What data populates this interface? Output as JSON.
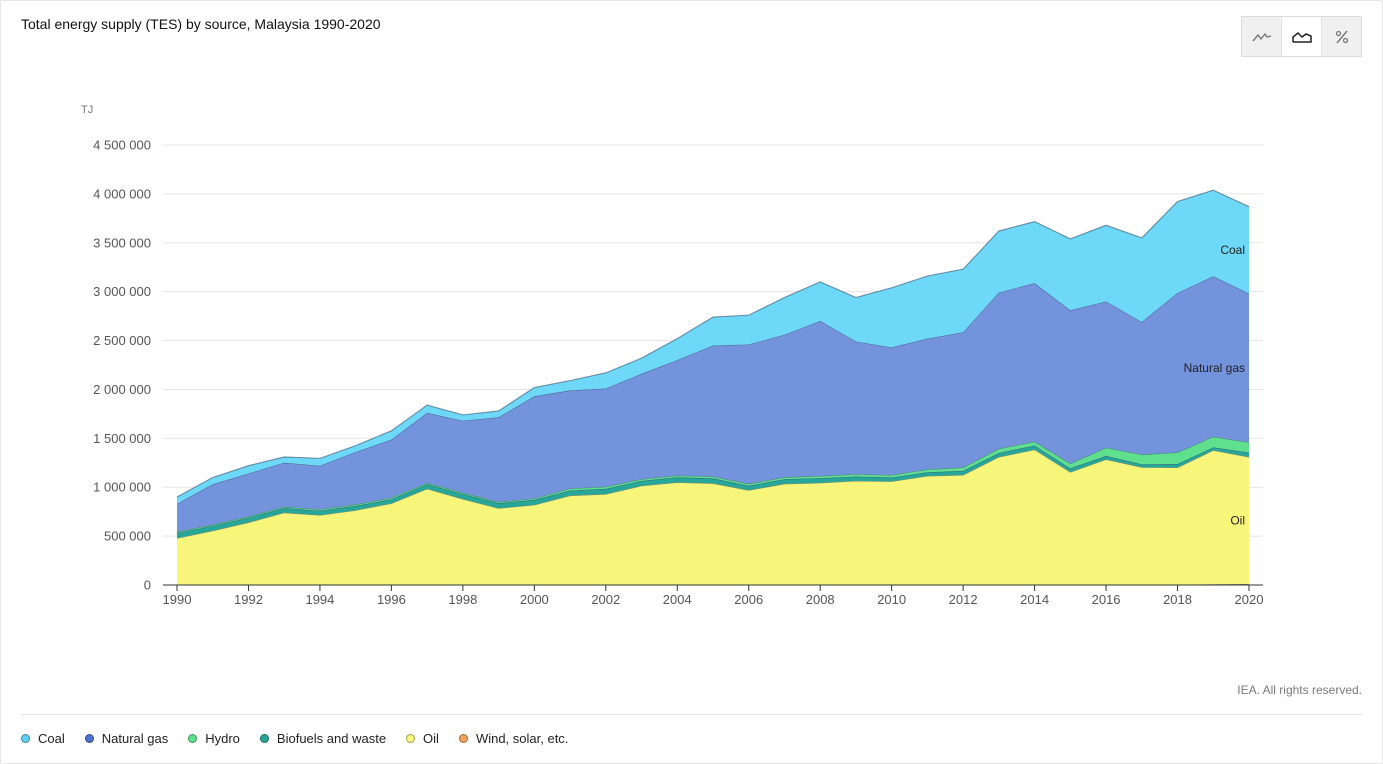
{
  "header": {
    "title": "Total energy supply (TES) by source, Malaysia 1990-2020"
  },
  "toolbar": {
    "buttons": [
      {
        "name": "line-chart-icon",
        "active": false
      },
      {
        "name": "area-chart-icon",
        "active": true
      },
      {
        "name": "percent-icon",
        "active": false,
        "label": "%"
      }
    ]
  },
  "footer": {
    "copyright": "IEA. All rights reserved."
  },
  "legend": [
    {
      "label": "Coal",
      "color": "#5fd0f5"
    },
    {
      "label": "Natural gas",
      "color": "#4a72d1"
    },
    {
      "label": "Hydro",
      "color": "#5ee08e"
    },
    {
      "label": "Biofuels and waste",
      "color": "#27a69a"
    },
    {
      "label": "Oil",
      "color": "#f7f57a"
    },
    {
      "label": "Wind, solar, etc.",
      "color": "#f0a35a"
    }
  ],
  "chart_data": {
    "type": "area",
    "stacked": true,
    "unit_label": "TJ",
    "x": [
      1990,
      1991,
      1992,
      1993,
      1994,
      1995,
      1996,
      1997,
      1998,
      1999,
      2000,
      2001,
      2002,
      2003,
      2004,
      2005,
      2006,
      2007,
      2008,
      2009,
      2010,
      2011,
      2012,
      2013,
      2014,
      2015,
      2016,
      2017,
      2018,
      2019,
      2020
    ],
    "x_ticks": [
      "1990",
      "1992",
      "1994",
      "1996",
      "1998",
      "2000",
      "2002",
      "2004",
      "2006",
      "2008",
      "2010",
      "2012",
      "2014",
      "2016",
      "2018",
      "2020"
    ],
    "y_ticks": [
      "0",
      "500 000",
      "1 000 000",
      "1 500 000",
      "2 000 000",
      "2 500 000",
      "3 000 000",
      "3 500 000",
      "4 000 000",
      "4 500 000"
    ],
    "ylim": [
      0,
      4500000
    ],
    "grid": true,
    "series": [
      {
        "name": "Wind, solar, etc.",
        "color": "#f0a35a",
        "values": [
          0,
          0,
          0,
          0,
          0,
          0,
          0,
          0,
          0,
          0,
          0,
          0,
          0,
          0,
          0,
          0,
          0,
          0,
          0,
          0,
          0,
          0,
          0,
          0,
          0,
          0,
          0,
          0,
          2000,
          8000,
          10000
        ]
      },
      {
        "name": "Oil",
        "color": "#f7f57a",
        "values": [
          480000,
          555000,
          640000,
          740000,
          715000,
          765000,
          835000,
          985000,
          880000,
          785000,
          820000,
          915000,
          930000,
          1015000,
          1050000,
          1040000,
          970000,
          1035000,
          1045000,
          1065000,
          1060000,
          1115000,
          1125000,
          1310000,
          1385000,
          1155000,
          1285000,
          1205000,
          1200000,
          1370000,
          1300000
        ]
      },
      {
        "name": "Biofuels and waste",
        "color": "#27a69a",
        "values": [
          52000,
          50000,
          48000,
          47000,
          45000,
          44000,
          42000,
          45000,
          50000,
          52000,
          50000,
          52000,
          55000,
          50000,
          52000,
          50000,
          45000,
          48000,
          48000,
          45000,
          40000,
          38000,
          42000,
          40000,
          42000,
          38000,
          35000,
          30000,
          35000,
          30000,
          45000
        ]
      },
      {
        "name": "Hydro",
        "color": "#5ee08e",
        "values": [
          12000,
          12000,
          12000,
          13000,
          14000,
          15000,
          15000,
          14000,
          13000,
          13000,
          15000,
          20000,
          20000,
          18000,
          18000,
          20000,
          20000,
          20000,
          22000,
          24000,
          25000,
          30000,
          35000,
          45000,
          40000,
          50000,
          85000,
          100000,
          120000,
          110000,
          105000
        ]
      },
      {
        "name": "Natural gas",
        "color": "#7393dc",
        "values": [
          286000,
          413000,
          440000,
          450000,
          446000,
          536000,
          595000,
          716000,
          737000,
          865000,
          1045000,
          1003000,
          1005000,
          1077000,
          1180000,
          1340000,
          1425000,
          1457000,
          1585000,
          1356000,
          1305000,
          1337000,
          1383000,
          1595000,
          1620000,
          1567000,
          1495000,
          1355000,
          1630000,
          1640000,
          1520000
        ]
      },
      {
        "name": "Coal",
        "color": "#6dd8f8",
        "values": [
          70000,
          70000,
          80000,
          60000,
          75000,
          65000,
          90000,
          80000,
          60000,
          65000,
          90000,
          100000,
          160000,
          160000,
          220000,
          290000,
          300000,
          380000,
          400000,
          450000,
          610000,
          640000,
          645000,
          630000,
          630000,
          730000,
          780000,
          860000,
          935000,
          880000,
          890000
        ]
      }
    ],
    "area_labels": [
      {
        "text": "Coal",
        "series": "Coal"
      },
      {
        "text": "Natural gas",
        "series": "Natural gas"
      },
      {
        "text": "Oil",
        "series": "Oil"
      }
    ]
  }
}
